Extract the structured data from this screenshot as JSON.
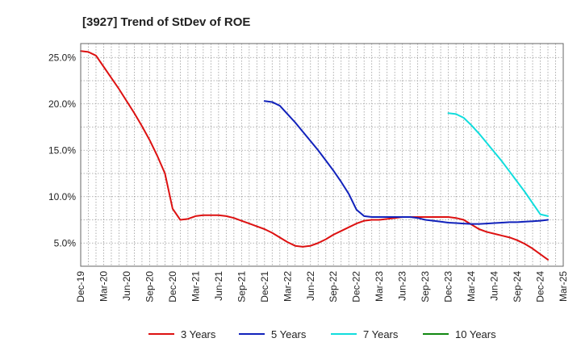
{
  "chart_data": {
    "type": "line",
    "title": "[3927]  Trend of StDev of ROE",
    "xlabel": "",
    "ylabel": "",
    "x_range": [
      "2019-12",
      "2025-03"
    ],
    "ylim": [
      2.5,
      26.5
    ],
    "grid": true,
    "legend_position": "bottom",
    "x_ticks": [
      "Dec-19",
      "Mar-20",
      "Jun-20",
      "Sep-20",
      "Dec-20",
      "Mar-21",
      "Jun-21",
      "Sep-21",
      "Dec-21",
      "Mar-22",
      "Jun-22",
      "Sep-22",
      "Dec-22",
      "Mar-23",
      "Jun-23",
      "Sep-23",
      "Dec-23",
      "Mar-24",
      "Jun-24",
      "Sep-24",
      "Dec-24",
      "Mar-25"
    ],
    "y_ticks": [
      5,
      10,
      15,
      20,
      25
    ],
    "y_tick_labels": [
      "5.0%",
      "10.0%",
      "15.0%",
      "20.0%",
      "25.0%"
    ],
    "series": [
      {
        "name": "3 Years",
        "color": "#dd1111",
        "points": [
          [
            "2019-12",
            25.7
          ],
          [
            "2020-01",
            25.6
          ],
          [
            "2020-02",
            25.2
          ],
          [
            "2020-03",
            24.0
          ],
          [
            "2020-04",
            22.8
          ],
          [
            "2020-05",
            21.6
          ],
          [
            "2020-06",
            20.3
          ],
          [
            "2020-07",
            19.0
          ],
          [
            "2020-08",
            17.6
          ],
          [
            "2020-09",
            16.1
          ],
          [
            "2020-10",
            14.4
          ],
          [
            "2020-11",
            12.5
          ],
          [
            "2020-12",
            8.7
          ],
          [
            "2021-01",
            7.5
          ],
          [
            "2021-02",
            7.6
          ],
          [
            "2021-03",
            7.9
          ],
          [
            "2021-04",
            8.0
          ],
          [
            "2021-05",
            8.0
          ],
          [
            "2021-06",
            8.0
          ],
          [
            "2021-07",
            7.9
          ],
          [
            "2021-08",
            7.7
          ],
          [
            "2021-09",
            7.4
          ],
          [
            "2021-10",
            7.1
          ],
          [
            "2021-11",
            6.8
          ],
          [
            "2021-12",
            6.5
          ],
          [
            "2022-01",
            6.1
          ],
          [
            "2022-02",
            5.6
          ],
          [
            "2022-03",
            5.1
          ],
          [
            "2022-04",
            4.7
          ],
          [
            "2022-05",
            4.6
          ],
          [
            "2022-06",
            4.7
          ],
          [
            "2022-07",
            5.0
          ],
          [
            "2022-08",
            5.4
          ],
          [
            "2022-09",
            5.9
          ],
          [
            "2022-10",
            6.3
          ],
          [
            "2022-11",
            6.7
          ],
          [
            "2022-12",
            7.1
          ],
          [
            "2023-01",
            7.4
          ],
          [
            "2023-02",
            7.5
          ],
          [
            "2023-03",
            7.5
          ],
          [
            "2023-04",
            7.6
          ],
          [
            "2023-05",
            7.7
          ],
          [
            "2023-06",
            7.8
          ],
          [
            "2023-07",
            7.8
          ],
          [
            "2023-08",
            7.8
          ],
          [
            "2023-09",
            7.8
          ],
          [
            "2023-10",
            7.8
          ],
          [
            "2023-11",
            7.8
          ],
          [
            "2023-12",
            7.8
          ],
          [
            "2024-01",
            7.7
          ],
          [
            "2024-02",
            7.5
          ],
          [
            "2024-03",
            7.0
          ],
          [
            "2024-04",
            6.5
          ],
          [
            "2024-05",
            6.2
          ],
          [
            "2024-06",
            6.0
          ],
          [
            "2024-07",
            5.8
          ],
          [
            "2024-08",
            5.6
          ],
          [
            "2024-09",
            5.3
          ],
          [
            "2024-10",
            4.9
          ],
          [
            "2024-11",
            4.4
          ],
          [
            "2024-12",
            3.8
          ],
          [
            "2025-01",
            3.2
          ]
        ]
      },
      {
        "name": "5 Years",
        "color": "#1122bb",
        "points": [
          [
            "2021-12",
            20.3
          ],
          [
            "2022-01",
            20.2
          ],
          [
            "2022-02",
            19.8
          ],
          [
            "2022-03",
            18.9
          ],
          [
            "2022-04",
            18.0
          ],
          [
            "2022-05",
            17.0
          ],
          [
            "2022-06",
            16.0
          ],
          [
            "2022-07",
            15.0
          ],
          [
            "2022-08",
            13.9
          ],
          [
            "2022-09",
            12.8
          ],
          [
            "2022-10",
            11.6
          ],
          [
            "2022-11",
            10.3
          ],
          [
            "2022-12",
            8.6
          ],
          [
            "2023-01",
            7.9
          ],
          [
            "2023-02",
            7.8
          ],
          [
            "2023-03",
            7.8
          ],
          [
            "2023-04",
            7.8
          ],
          [
            "2023-05",
            7.8
          ],
          [
            "2023-06",
            7.8
          ],
          [
            "2023-07",
            7.8
          ],
          [
            "2023-08",
            7.7
          ],
          [
            "2023-09",
            7.5
          ],
          [
            "2023-10",
            7.4
          ],
          [
            "2023-11",
            7.3
          ],
          [
            "2023-12",
            7.2
          ],
          [
            "2024-01",
            7.15
          ],
          [
            "2024-02",
            7.1
          ],
          [
            "2024-03",
            7.05
          ],
          [
            "2024-04",
            7.05
          ],
          [
            "2024-05",
            7.1
          ],
          [
            "2024-06",
            7.15
          ],
          [
            "2024-07",
            7.2
          ],
          [
            "2024-08",
            7.25
          ],
          [
            "2024-09",
            7.25
          ],
          [
            "2024-10",
            7.3
          ],
          [
            "2024-11",
            7.35
          ],
          [
            "2024-12",
            7.4
          ],
          [
            "2025-01",
            7.5
          ]
        ]
      },
      {
        "name": "7 Years",
        "color": "#11dddd",
        "points": [
          [
            "2023-12",
            19.0
          ],
          [
            "2024-01",
            18.9
          ],
          [
            "2024-02",
            18.5
          ],
          [
            "2024-03",
            17.7
          ],
          [
            "2024-04",
            16.8
          ],
          [
            "2024-05",
            15.8
          ],
          [
            "2024-06",
            14.8
          ],
          [
            "2024-07",
            13.8
          ],
          [
            "2024-08",
            12.7
          ],
          [
            "2024-09",
            11.6
          ],
          [
            "2024-10",
            10.5
          ],
          [
            "2024-11",
            9.3
          ],
          [
            "2024-12",
            8.1
          ],
          [
            "2025-01",
            7.9
          ]
        ]
      },
      {
        "name": "10 Years",
        "color": "#118811",
        "points": []
      }
    ]
  }
}
